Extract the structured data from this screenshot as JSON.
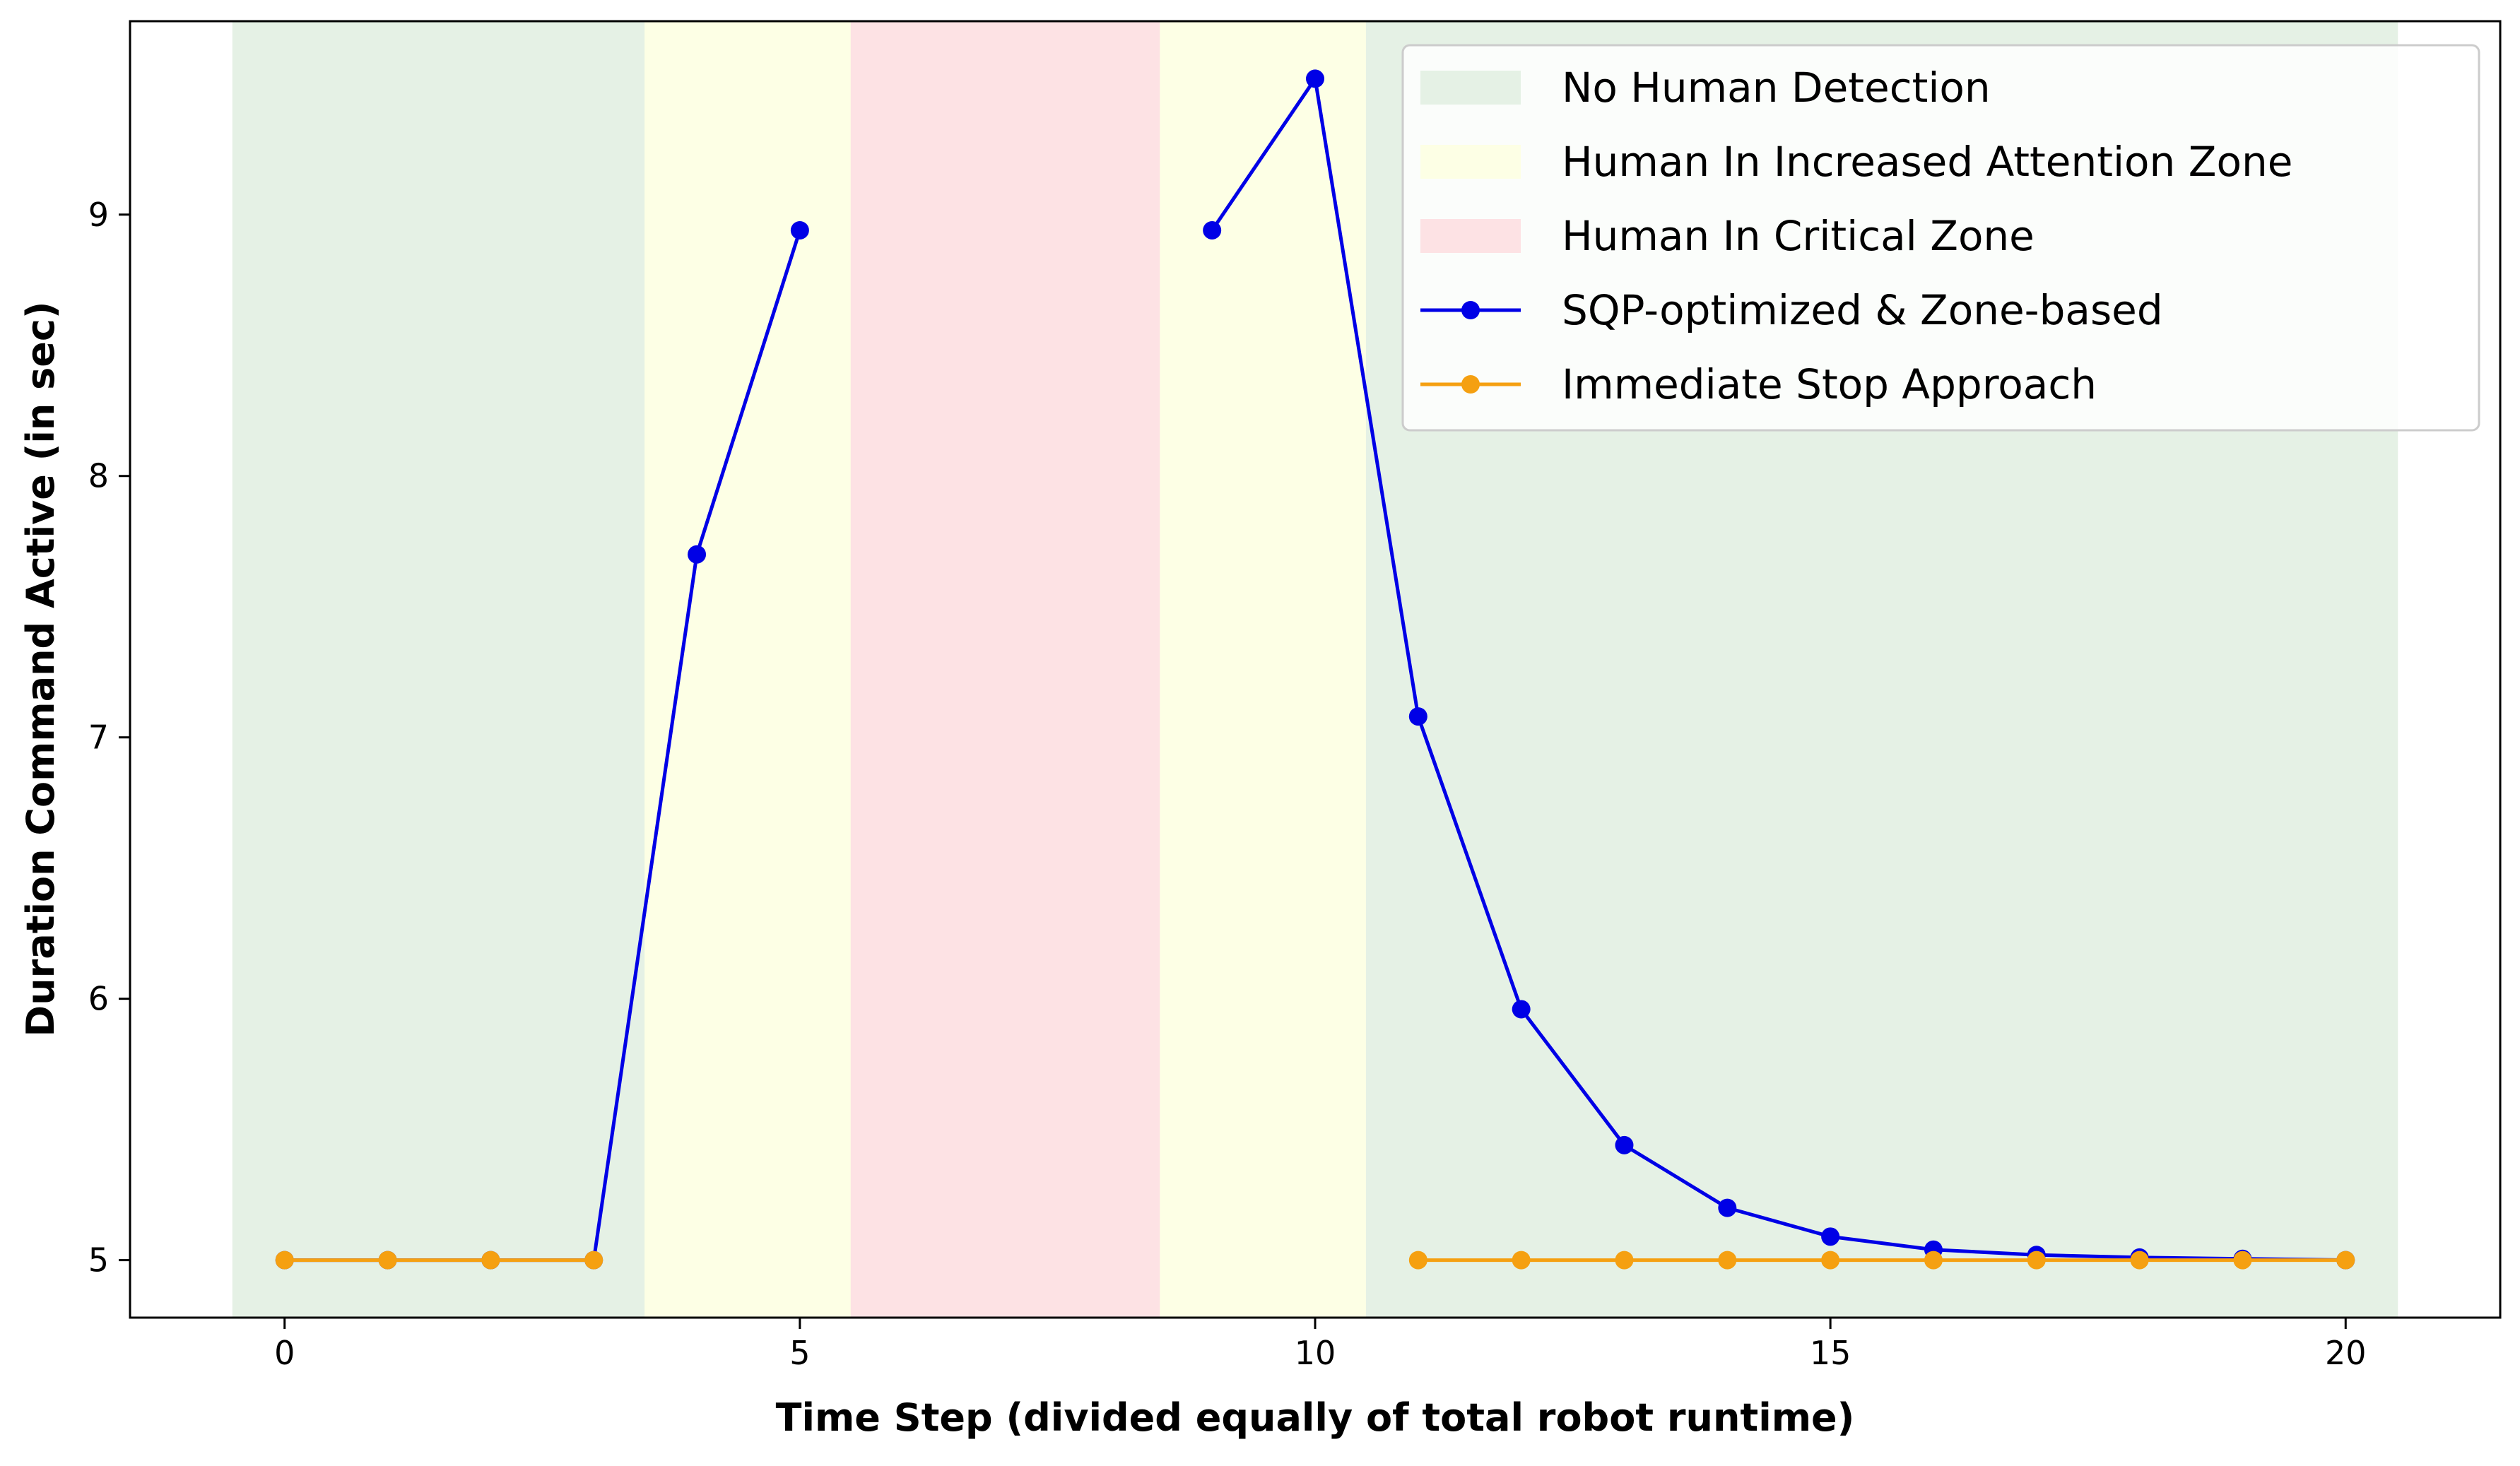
{
  "chart_data": {
    "type": "line",
    "title": "",
    "xlabel": "Time Step (divided equally of total robot runtime)",
    "ylabel": "Duration Command Active (in sec)",
    "xlim": [
      -1.5,
      21.5
    ],
    "ylim": [
      4.78,
      9.74
    ],
    "xticks": [
      0,
      5,
      10,
      15,
      20
    ],
    "yticks": [
      5,
      6,
      7,
      8,
      9
    ],
    "grid": false,
    "legend_position": "top-right",
    "zones": [
      {
        "label": "No Human Detection",
        "x_start": -0.5,
        "x_end": 3.5,
        "color": "#e5f1e5"
      },
      {
        "label": "Human In Increased Attention Zone",
        "x_start": 3.5,
        "x_end": 5.5,
        "color": "#fdffe5"
      },
      {
        "label": "Human In Critical Zone",
        "x_start": 5.5,
        "x_end": 8.5,
        "color": "#fde2e4"
      },
      {
        "label": "",
        "x_start": 8.5,
        "x_end": 10.5,
        "color": "#fdffe5"
      },
      {
        "label": "",
        "x_start": 10.5,
        "x_end": 20.5,
        "color": "#e5f1e5"
      }
    ],
    "series": [
      {
        "name": "SQP-optimized & Zone-based",
        "color": "#0000e6",
        "segments": [
          [
            [
              0,
              5.0
            ],
            [
              1,
              5.0
            ],
            [
              2,
              5.0
            ],
            [
              3,
              5.0
            ],
            [
              4,
              7.7
            ],
            [
              5,
              8.94
            ]
          ],
          [
            [
              9,
              8.94
            ],
            [
              10,
              9.52
            ],
            [
              11,
              7.08
            ],
            [
              12,
              5.96
            ],
            [
              13,
              5.44
            ],
            [
              14,
              5.2
            ],
            [
              15,
              5.09
            ],
            [
              16,
              5.04
            ],
            [
              17,
              5.02
            ],
            [
              18,
              5.01
            ],
            [
              19,
              5.005
            ],
            [
              20,
              5.0
            ]
          ]
        ]
      },
      {
        "name": "Immediate Stop Approach",
        "color": "#f5a011",
        "segments": [
          [
            [
              0,
              5.0
            ],
            [
              1,
              5.0
            ],
            [
              2,
              5.0
            ],
            [
              3,
              5.0
            ]
          ],
          [
            [
              11,
              5.0
            ],
            [
              12,
              5.0
            ],
            [
              13,
              5.0
            ],
            [
              14,
              5.0
            ],
            [
              15,
              5.0
            ],
            [
              16,
              5.0
            ],
            [
              17,
              5.0
            ],
            [
              18,
              5.0
            ],
            [
              19,
              5.0
            ],
            [
              20,
              5.0
            ]
          ]
        ]
      }
    ]
  }
}
